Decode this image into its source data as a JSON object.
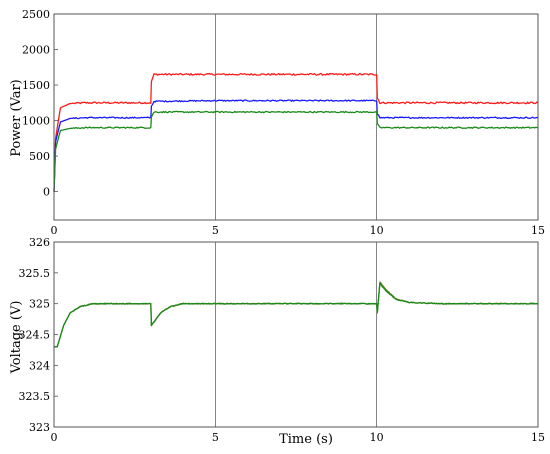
{
  "chart_data": [
    {
      "type": "line",
      "title": "",
      "xlabel": "",
      "ylabel": "Power (Var)",
      "xlim": [
        0,
        15
      ],
      "ylim": [
        -400,
        2500
      ],
      "xticks": [
        0,
        5,
        10,
        15
      ],
      "yticks": [
        0,
        500,
        1000,
        1500,
        2000,
        2500
      ],
      "ytick_labels": [
        "0",
        "500",
        "1000",
        "1500",
        "2000",
        "2500"
      ],
      "grid": true,
      "legend": "none",
      "series": [
        {
          "color": "#ff1a1a",
          "noise": 12,
          "x": [
            0,
            0.05,
            0.2,
            0.5,
            1,
            3,
            3.02,
            3.1,
            5,
            8,
            10,
            10.02,
            10.1,
            12,
            15
          ],
          "y": [
            0,
            750,
            1180,
            1240,
            1250,
            1250,
            1550,
            1650,
            1650,
            1650,
            1650,
            1320,
            1250,
            1250,
            1250
          ]
        },
        {
          "color": "#1a1aff",
          "noise": 9,
          "x": [
            0,
            0.05,
            0.2,
            0.5,
            1,
            3,
            3.02,
            3.1,
            5,
            8,
            10,
            10.02,
            10.1,
            12,
            15
          ],
          "y": [
            0,
            700,
            980,
            1030,
            1040,
            1040,
            1200,
            1270,
            1280,
            1280,
            1280,
            1100,
            1040,
            1040,
            1040
          ]
        },
        {
          "color": "#1a8a1a",
          "noise": 9,
          "x": [
            0,
            0.05,
            0.2,
            0.5,
            1,
            3,
            3.02,
            3.1,
            5,
            8,
            10,
            10.02,
            10.1,
            12,
            15
          ],
          "y": [
            0,
            600,
            860,
            890,
            900,
            900,
            1050,
            1120,
            1120,
            1120,
            1120,
            950,
            900,
            900,
            900
          ]
        }
      ]
    },
    {
      "type": "line",
      "title": "",
      "xlabel": "Time (s)",
      "ylabel": "Voltage (V)",
      "xlim": [
        0,
        15
      ],
      "ylim": [
        323,
        326
      ],
      "xticks": [
        0,
        5,
        10,
        15
      ],
      "yticks": [
        323,
        323.5,
        324,
        324.5,
        325,
        325.5,
        326
      ],
      "ytick_labels": [
        "323",
        "323.5",
        "324",
        "324.5",
        "325",
        "325.5",
        "326"
      ],
      "grid": true,
      "legend": "none",
      "series": [
        {
          "color": "#6a7a1a",
          "noise": 0.008,
          "x": [
            0,
            0.1,
            0.3,
            0.5,
            0.8,
            1.2,
            2,
            3,
            3.02,
            3.1,
            3.3,
            3.6,
            4,
            5,
            10,
            10.02,
            10.1,
            10.3,
            10.6,
            11,
            12,
            15
          ],
          "y": [
            324.3,
            324.3,
            324.65,
            324.85,
            324.95,
            325.0,
            325.0,
            325.0,
            324.65,
            324.7,
            324.85,
            324.95,
            325.0,
            325.0,
            325.0,
            324.85,
            325.35,
            325.22,
            325.08,
            325.02,
            325.0,
            325.0
          ]
        },
        {
          "color": "#1a8a1a",
          "noise": 0.006,
          "x": [
            0,
            0.1,
            0.3,
            0.5,
            0.8,
            1.2,
            2,
            3,
            3.02,
            3.1,
            3.3,
            3.6,
            4,
            5,
            10,
            10.02,
            10.1,
            10.3,
            10.6,
            11,
            12,
            15
          ],
          "y": [
            324.3,
            324.3,
            324.65,
            324.85,
            324.95,
            325.0,
            325.0,
            325.0,
            324.65,
            324.7,
            324.85,
            324.95,
            325.0,
            325.0,
            325.0,
            324.85,
            325.33,
            325.2,
            325.07,
            325.02,
            325.0,
            325.0
          ]
        }
      ]
    }
  ]
}
